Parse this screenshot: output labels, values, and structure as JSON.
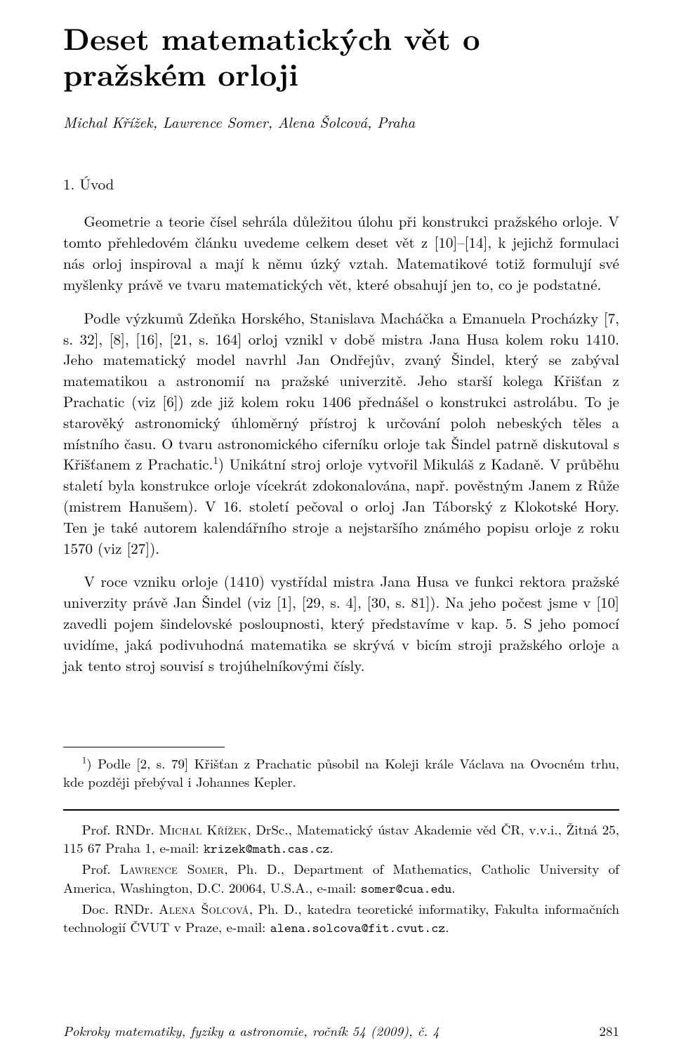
{
  "title": "Deset matematických vět o pražském orloji",
  "authors": "Michal Křížek, Lawrence Somer, Alena Šolcová, Praha",
  "section_heading": "1. Úvod",
  "paragraphs": {
    "p1": "Geometrie a teorie čísel sehrála důležitou úlohu při konstrukci pražského orloje. V tomto přehledovém článku uvedeme celkem deset vět z [10]–[14], k jejichž formulaci nás orloj inspiroval a mají k němu úzký vztah. Matematikové totiž formulují své myšlenky právě ve tvaru matematických vět, které obsahují jen to, co je podstatné.",
    "p2_a": "Podle výzkumů Zdeňka Horského, Stanislava Macháčka a Emanuela Procházky [7, s. 32], [8], [16], [21, s. 164] orloj vznikl v době mistra Jana Husa kolem roku 1410. Jeho matematický model navrhl Jan Ondřejův, zvaný Šindel, který se zabýval matematikou a astronomií na pražské univerzitě. Jeho starší kolega Křišťan z Prachatic (viz [6]) zde již kolem roku 1406 přednášel o konstrukci astrolábu. To je starověký astronomický úhloměrný přístroj k určování poloh nebeských těles a místního času. O tvaru astronomického ciferníku orloje tak Šindel patrně diskutoval s Křišťanem z Prachatic.",
    "p2_sup": "1",
    "p2_b": ") Unikátní stroj orloje vytvořil Mikuláš z Kadaně. V průběhu staletí byla konstrukce orloje vícekrát zdokonalována, např. pověstným Janem z Růže (mistrem Hanušem). V 16. století pečoval o orloj Jan Táborský z Klokotské Hory. Ten je také autorem kalendářního stroje a nejstaršího známého popisu orloje z roku 1570 (viz [27]).",
    "p3": "V roce vzniku orloje (1410) vystřídal mistra Jana Husa ve funkci rektora pražské univerzity právě Jan Šindel (viz [1], [29, s. 4], [30, s. 81]). Na jeho počest jsme v [10] zavedli pojem šindelovské posloupnosti, který představíme v kap. 5. S jeho pomocí uvidíme, jaká podivuhodná matematika se skrývá v bicím stroji pražského orloje a jak tento stroj souvisí s trojúhelníkovými čísly."
  },
  "footnote": {
    "mark": "1",
    "text": ") Podle [2, s. 79] Křišťan z Prachatic působil na Koleji krále Václava na Ovocném trhu, kde později přebýval i Johannes Kepler."
  },
  "affiliations": {
    "a1_pre": "Prof. RNDr. ",
    "a1_name": "Michal Křížek",
    "a1_post": ", DrSc., Matematický ústav Akademie věd ČR, v.v.i., Žitná 25, 115 67 Praha 1, e-mail: ",
    "a1_email": "krizek@math.cas.cz",
    "a1_end": ".",
    "a2_pre": "Prof. ",
    "a2_name": "Lawrence Somer",
    "a2_post": ", Ph. D., Department of Mathematics, Catholic University of America, Washington, D.C. 20064, U.S.A., e-mail: ",
    "a2_email": "somer@cua.edu",
    "a2_end": ".",
    "a3_pre": "Doc. RNDr. ",
    "a3_name": "Alena Šolcová",
    "a3_post": ", Ph. D., katedra teoretické informatiky, Fakulta informačních technologií ČVUT v Praze, e-mail: ",
    "a3_email": "alena.solcova@fit.cvut.cz",
    "a3_end": "."
  },
  "footer": {
    "journal": "Pokroky matematiky, fyziky a astronomie, ročník 54 (2009), č. 4",
    "page": "281"
  }
}
